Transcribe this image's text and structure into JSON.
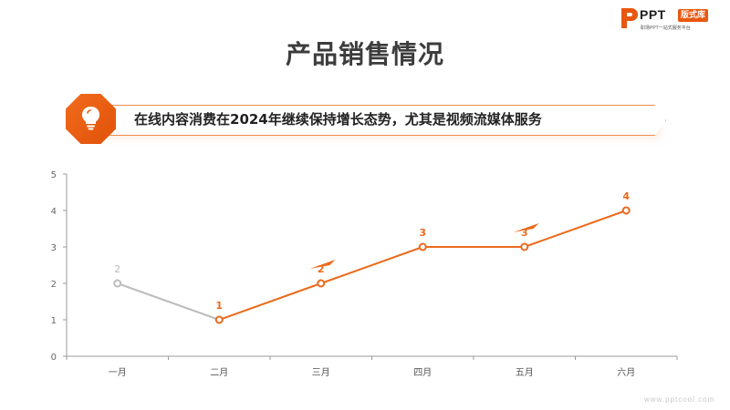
{
  "brand": {
    "name": "PPT",
    "badge": "版式库",
    "slogan": "职场PPT一站式服务平台",
    "website": "www.pptcool.com",
    "accent_color": "#e8570f"
  },
  "page": {
    "title": "产品销售情况",
    "subtitle": "在线内容消费在2024年继续保持增长态势，尤其是视频流媒体服务",
    "subtitle_icon": "lightbulb-icon"
  },
  "chart_data": {
    "type": "line",
    "title": "",
    "xlabel": "",
    "ylabel": "",
    "categories": [
      "一月",
      "二月",
      "三月",
      "四月",
      "五月",
      "六月"
    ],
    "values": [
      2,
      1,
      2,
      3,
      3,
      4
    ],
    "data_labels": [
      "2",
      "1",
      "2",
      "3",
      "3",
      "4"
    ],
    "y_ticks": [
      "0",
      "1",
      "2",
      "3",
      "4",
      "5"
    ],
    "ylim": [
      0,
      5
    ],
    "grid": false,
    "legend": "none",
    "colors": {
      "past": "#bdbdbd",
      "highlight": "#ea6a1c"
    },
    "highlight_from_index": 1
  }
}
